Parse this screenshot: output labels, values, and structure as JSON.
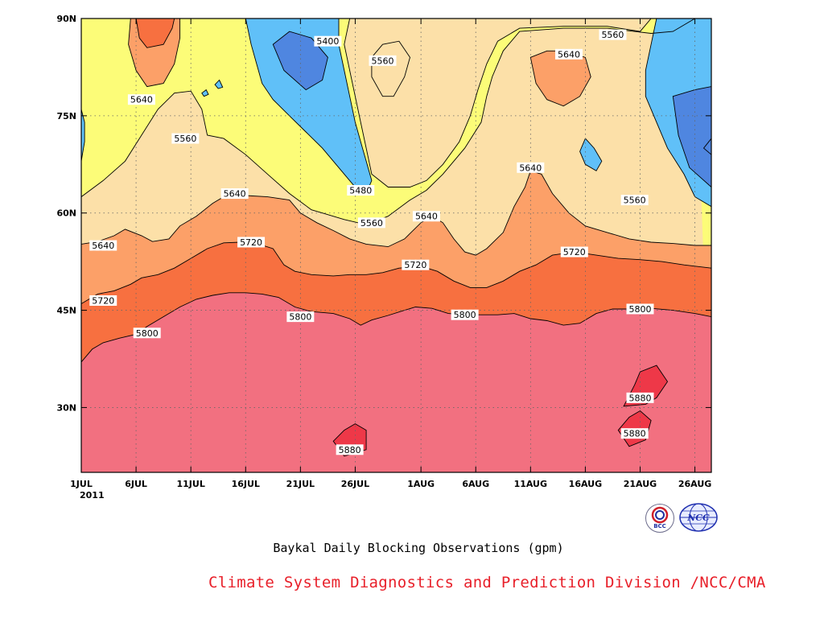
{
  "chart_data": {
    "type": "heatmap",
    "title": "",
    "caption": "Baykal Daily Blocking Observations (gpm)",
    "credit": "Climate System Diagnostics and Prediction Division /NCC/CMA",
    "year_label": "2011",
    "units": "gpm",
    "x_ticks": [
      {
        "day": 0,
        "label": "1JUL"
      },
      {
        "day": 5,
        "label": "6JUL"
      },
      {
        "day": 10,
        "label": "11JUL"
      },
      {
        "day": 15,
        "label": "16JUL"
      },
      {
        "day": 20,
        "label": "21JUL"
      },
      {
        "day": 25,
        "label": "26JUL"
      },
      {
        "day": 31,
        "label": "1AUG"
      },
      {
        "day": 36,
        "label": "6AUG"
      },
      {
        "day": 41,
        "label": "11AUG"
      },
      {
        "day": 46,
        "label": "16AUG"
      },
      {
        "day": 51,
        "label": "21AUG"
      },
      {
        "day": 56,
        "label": "26AUG"
      }
    ],
    "y_ticks": [
      {
        "lat": 30,
        "label": "30N"
      },
      {
        "lat": 45,
        "label": "45N"
      },
      {
        "lat": 60,
        "label": "60N"
      },
      {
        "lat": 75,
        "label": "75N"
      },
      {
        "lat": 90,
        "label": "90N"
      }
    ],
    "xlim": [
      0,
      57.5
    ],
    "ylim": [
      20,
      90
    ],
    "grid": true,
    "levels": [
      5400,
      5480,
      5560,
      5640,
      5720,
      5800,
      5880
    ],
    "band_colors": {
      "below_5400": "#4f86e0",
      "5400_5480": "#60c0f8",
      "5480_5560": "#fcfc78",
      "5560_5640": "#fce0a8",
      "5640_5720": "#fca068",
      "5720_5800": "#f77040",
      "5800_5880": "#f27080",
      "above_5880": "#ee3848"
    },
    "contours": {
      "5560_south": [
        [
          0,
          62.5
        ],
        [
          2,
          65
        ],
        [
          4,
          68
        ],
        [
          5.5,
          72
        ],
        [
          7,
          76
        ],
        [
          8.5,
          78.5
        ],
        [
          10,
          78.8
        ],
        [
          11,
          76
        ],
        [
          11.5,
          72
        ],
        [
          13,
          71.5
        ],
        [
          15,
          69
        ],
        [
          17,
          66
        ],
        [
          19,
          63
        ],
        [
          21,
          60.5
        ],
        [
          22,
          60
        ],
        [
          24,
          59
        ],
        [
          26,
          58.2
        ],
        [
          28,
          59.5
        ],
        [
          30,
          62
        ],
        [
          31.5,
          63.5
        ],
        [
          33,
          66
        ],
        [
          35,
          70
        ],
        [
          36.5,
          74
        ],
        [
          37,
          78
        ],
        [
          37.5,
          81
        ],
        [
          38.5,
          85
        ],
        [
          40,
          88
        ],
        [
          44,
          88.5
        ],
        [
          48,
          88.5
        ],
        [
          52,
          87.7
        ],
        [
          54,
          88
        ],
        [
          56,
          90
        ]
      ],
      "5640_south": [
        [
          0,
          55.2
        ],
        [
          1.5,
          55.6
        ],
        [
          3,
          56.5
        ],
        [
          4,
          57.5
        ],
        [
          5.5,
          56.5
        ],
        [
          6.5,
          55.6
        ],
        [
          8,
          56
        ],
        [
          9,
          58
        ],
        [
          10.5,
          59.5
        ],
        [
          12,
          61.5
        ],
        [
          13.5,
          63
        ],
        [
          15,
          62.7
        ],
        [
          17,
          62.5
        ],
        [
          19,
          62
        ],
        [
          20,
          60
        ],
        [
          21.5,
          58.5
        ],
        [
          23,
          57.3
        ],
        [
          24.5,
          56
        ],
        [
          26,
          55.2
        ],
        [
          28,
          54.8
        ],
        [
          29.5,
          56
        ],
        [
          31,
          58.5
        ],
        [
          32,
          59.5
        ],
        [
          33,
          58.5
        ],
        [
          34,
          56
        ],
        [
          35,
          54
        ],
        [
          36,
          53.5
        ],
        [
          37,
          54.5
        ],
        [
          38.5,
          57
        ],
        [
          39.5,
          61
        ],
        [
          40.5,
          64
        ],
        [
          41,
          66.5
        ],
        [
          42,
          66
        ],
        [
          43,
          63
        ],
        [
          44.5,
          60
        ],
        [
          46,
          58
        ],
        [
          48,
          57
        ],
        [
          50,
          56
        ],
        [
          52,
          55.5
        ],
        [
          54,
          55.3
        ],
        [
          56,
          55
        ],
        [
          57.5,
          55
        ]
      ],
      "5720_south": [
        [
          0,
          46
        ],
        [
          1.5,
          47.5
        ],
        [
          3,
          48
        ],
        [
          4.5,
          49
        ],
        [
          5.5,
          50
        ],
        [
          7,
          50.5
        ],
        [
          8.5,
          51.5
        ],
        [
          10,
          53
        ],
        [
          11.5,
          54.5
        ],
        [
          13,
          55.4
        ],
        [
          14.5,
          55.5
        ],
        [
          16,
          55.3
        ],
        [
          17.5,
          54.5
        ],
        [
          18.5,
          52
        ],
        [
          19.5,
          51
        ],
        [
          21,
          50.5
        ],
        [
          23,
          50.3
        ],
        [
          24.5,
          50.5
        ],
        [
          26,
          50.5
        ],
        [
          27.5,
          50.8
        ],
        [
          29,
          51.5
        ],
        [
          31,
          51.8
        ],
        [
          32.5,
          51
        ],
        [
          34,
          49.5
        ],
        [
          35.5,
          48.5
        ],
        [
          37,
          48.5
        ],
        [
          38.5,
          49.5
        ],
        [
          40,
          51
        ],
        [
          41.5,
          52
        ],
        [
          43,
          53.5
        ],
        [
          45,
          54
        ],
        [
          47,
          53.5
        ],
        [
          49,
          53
        ],
        [
          51,
          52.8
        ],
        [
          53,
          52.5
        ],
        [
          55,
          52
        ],
        [
          57.5,
          51.5
        ]
      ],
      "5800_south": [
        [
          0,
          37
        ],
        [
          1,
          39
        ],
        [
          2,
          40
        ],
        [
          3.5,
          40.7
        ],
        [
          5,
          41.3
        ],
        [
          6,
          42.5
        ],
        [
          7.5,
          44
        ],
        [
          9,
          45.5
        ],
        [
          10.5,
          46.7
        ],
        [
          12,
          47.3
        ],
        [
          13.5,
          47.7
        ],
        [
          15,
          47.7
        ],
        [
          16.5,
          47.5
        ],
        [
          18,
          47
        ],
        [
          19.5,
          45.5
        ],
        [
          21,
          44.8
        ],
        [
          23,
          44.5
        ],
        [
          24.5,
          43.7
        ],
        [
          25.5,
          42.7
        ],
        [
          26.5,
          43.5
        ],
        [
          28,
          44.2
        ],
        [
          29.5,
          45
        ],
        [
          30.5,
          45.5
        ],
        [
          32,
          45.3
        ],
        [
          33.5,
          44.5
        ],
        [
          35,
          44.3
        ],
        [
          36.5,
          44.3
        ],
        [
          38,
          44.3
        ],
        [
          39.5,
          44.5
        ],
        [
          41,
          43.7
        ],
        [
          42.5,
          43.4
        ],
        [
          44,
          42.7
        ],
        [
          45.5,
          43
        ],
        [
          47,
          44.5
        ],
        [
          48.5,
          45.2
        ],
        [
          50,
          45.2
        ],
        [
          52,
          45.3
        ],
        [
          54,
          45
        ],
        [
          56,
          44.5
        ],
        [
          57.5,
          44
        ]
      ],
      "5560_tongue_north": [
        [
          17.5,
          90
        ],
        [
          17,
          87
        ],
        [
          16.5,
          84
        ],
        [
          17.5,
          80.5
        ],
        [
          18.5,
          78
        ],
        [
          19.5,
          75
        ],
        [
          20.5,
          72.5
        ],
        [
          21.5,
          71
        ],
        [
          23,
          70
        ],
        [
          25,
          67.5
        ],
        [
          26,
          64
        ],
        [
          25,
          62.5
        ],
        [
          22,
          63
        ],
        [
          21,
          65
        ],
        [
          20,
          68
        ]
      ]
    },
    "regions": {
      "lat_5400_1": [
        [
          17.5,
          86
        ],
        [
          18.5,
          82
        ],
        [
          20.5,
          79
        ],
        [
          22,
          80.5
        ],
        [
          22.5,
          84
        ],
        [
          21,
          87
        ],
        [
          19,
          88
        ]
      ],
      "lat_5400_2": [
        [
          54,
          78
        ],
        [
          56,
          79
        ],
        [
          57.5,
          79.5
        ],
        [
          57.5,
          64
        ],
        [
          55.5,
          67
        ],
        [
          54.5,
          72
        ]
      ],
      "lat_5480_1": [
        [
          15,
          90
        ],
        [
          15.5,
          86
        ],
        [
          16,
          83
        ],
        [
          16.5,
          80
        ],
        [
          17.5,
          77.5
        ],
        [
          19,
          75
        ],
        [
          20.5,
          72.5
        ],
        [
          22,
          70
        ],
        [
          23.5,
          67
        ],
        [
          25,
          64
        ],
        [
          26,
          63
        ],
        [
          26.5,
          65
        ],
        [
          26,
          68
        ],
        [
          25.5,
          71
        ],
        [
          25,
          74
        ],
        [
          24.5,
          78
        ],
        [
          24,
          82
        ],
        [
          23.5,
          86
        ],
        [
          23.5,
          90
        ]
      ],
      "lat_5480_2": [
        [
          52.5,
          90
        ],
        [
          52,
          86
        ],
        [
          51.5,
          82
        ],
        [
          51.5,
          78
        ],
        [
          52.5,
          74
        ],
        [
          53.5,
          70
        ],
        [
          55,
          66
        ],
        [
          56,
          62.5
        ],
        [
          57.5,
          61
        ],
        [
          57.5,
          90
        ]
      ],
      "lat_5480_3": [
        [
          46,
          71.5
        ],
        [
          46.8,
          70
        ],
        [
          47.5,
          68
        ],
        [
          47,
          66.5
        ],
        [
          46,
          67.5
        ],
        [
          45.5,
          69.5
        ]
      ],
      "lat_5560_1": [
        [
          26.5,
          84
        ],
        [
          27.5,
          86
        ],
        [
          29,
          86.5
        ],
        [
          30,
          84
        ],
        [
          29.5,
          81
        ],
        [
          28.5,
          78
        ],
        [
          27.5,
          78
        ],
        [
          26.5,
          81
        ]
      ],
      "lat_5640_1": [
        [
          4.5,
          90
        ],
        [
          4.3,
          86
        ],
        [
          5,
          82
        ],
        [
          6,
          79.5
        ],
        [
          7.5,
          80
        ],
        [
          8.5,
          83
        ],
        [
          9,
          87
        ],
        [
          9,
          90
        ]
      ],
      "lat_5640_2": [
        [
          41,
          84
        ],
        [
          41.5,
          80
        ],
        [
          42.5,
          77.5
        ],
        [
          44,
          76.5
        ],
        [
          45.5,
          78
        ],
        [
          46.5,
          81
        ],
        [
          46,
          84
        ],
        [
          44,
          85
        ],
        [
          42.5,
          85
        ]
      ],
      "lat_5720_1": [
        [
          5,
          90
        ],
        [
          5.3,
          87
        ],
        [
          6,
          85.5
        ],
        [
          7.5,
          86
        ],
        [
          8.3,
          88.5
        ],
        [
          8.5,
          90
        ]
      ],
      "lat_5880_1": [
        [
          23,
          24.8
        ],
        [
          24,
          26.5
        ],
        [
          25,
          27.5
        ],
        [
          26,
          26.5
        ],
        [
          26,
          23.5
        ],
        [
          24,
          22.5
        ]
      ],
      "lat_5880_2": [
        [
          49.5,
          30.2
        ],
        [
          50.5,
          33.5
        ],
        [
          51,
          35.5
        ],
        [
          52.5,
          36.5
        ],
        [
          53.5,
          34
        ],
        [
          52.5,
          31.5
        ],
        [
          51.5,
          30.5
        ]
      ],
      "lat_5880_3": [
        [
          49,
          26.5
        ],
        [
          50,
          28.5
        ],
        [
          51,
          29.5
        ],
        [
          52,
          28
        ],
        [
          51.5,
          25
        ],
        [
          50,
          24
        ]
      ],
      "tiny_blue_1": [
        [
          11,
          78.5
        ],
        [
          11.4,
          79
        ],
        [
          11.6,
          78.3
        ],
        [
          11.2,
          78
        ]
      ],
      "tiny_blue_2": [
        [
          12.2,
          79.8
        ],
        [
          12.6,
          80.5
        ],
        [
          12.9,
          79.4
        ],
        [
          12.5,
          79.2
        ]
      ],
      "edge_blue_1": [
        [
          0,
          68
        ],
        [
          0.3,
          71
        ],
        [
          0.3,
          74
        ],
        [
          0,
          76
        ]
      ],
      "edge_blue_2": [
        [
          57.5,
          69
        ],
        [
          56.8,
          70
        ],
        [
          57.5,
          71.5
        ]
      ]
    },
    "contour_labels": [
      {
        "value": 5400,
        "day": 22.5,
        "lat": 86.5
      },
      {
        "value": 5560,
        "day": 27.5,
        "lat": 83.5
      },
      {
        "value": 5560,
        "day": 48.5,
        "lat": 87.5
      },
      {
        "value": 5640,
        "day": 44.5,
        "lat": 84.5
      },
      {
        "value": 5640,
        "day": 5.5,
        "lat": 77.5
      },
      {
        "value": 5560,
        "day": 9.5,
        "lat": 71.5
      },
      {
        "value": 5640,
        "day": 41,
        "lat": 67
      },
      {
        "value": 5480,
        "day": 25.5,
        "lat": 63.5
      },
      {
        "value": 5640,
        "day": 14,
        "lat": 63
      },
      {
        "value": 5560,
        "day": 50.5,
        "lat": 62
      },
      {
        "value": 5640,
        "day": 31.5,
        "lat": 59.5
      },
      {
        "value": 5560,
        "day": 26.5,
        "lat": 58.5
      },
      {
        "value": 5640,
        "day": 2,
        "lat": 55
      },
      {
        "value": 5720,
        "day": 15.5,
        "lat": 55.5
      },
      {
        "value": 5720,
        "day": 30.5,
        "lat": 52
      },
      {
        "value": 5720,
        "day": 45,
        "lat": 54
      },
      {
        "value": 5720,
        "day": 2,
        "lat": 46.5
      },
      {
        "value": 5800,
        "day": 20,
        "lat": 44
      },
      {
        "value": 5800,
        "day": 35,
        "lat": 44.3
      },
      {
        "value": 5800,
        "day": 51,
        "lat": 45.2
      },
      {
        "value": 5800,
        "day": 6,
        "lat": 41.5
      },
      {
        "value": 5880,
        "day": 51,
        "lat": 31.5
      },
      {
        "value": 5880,
        "day": 50.5,
        "lat": 26
      },
      {
        "value": 5880,
        "day": 24.5,
        "lat": 23.5
      }
    ]
  },
  "logos": {
    "left": {
      "text": "BCC",
      "icon": "bcc-logo-icon"
    },
    "right": {
      "text": "NCC",
      "icon": "ncc-globe-logo-icon"
    }
  }
}
